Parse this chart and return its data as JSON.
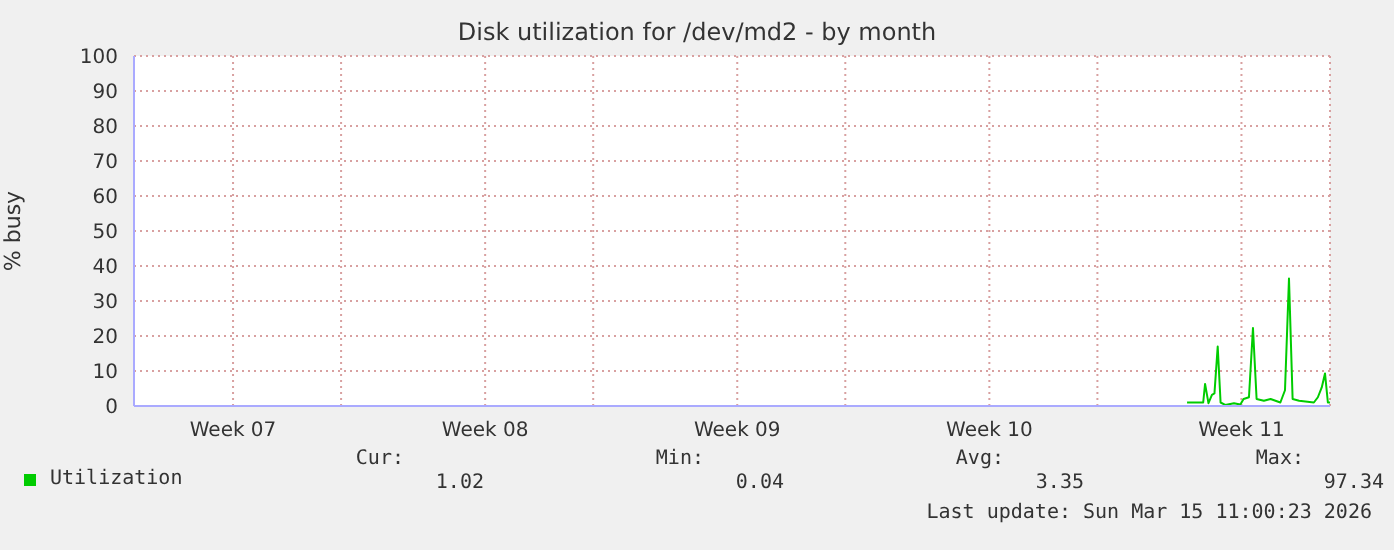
{
  "chart_data": {
    "type": "line",
    "title": "Disk utilization for /dev/md2 - by month",
    "ylabel": "% busy",
    "xlim": [
      "2026-02-10T06:00",
      "2026-03-15T11:00"
    ],
    "xticks": [
      {
        "value": "2026-02-13",
        "label": "Week 07"
      },
      {
        "value": "2026-02-16",
        "label": null
      },
      {
        "value": "2026-02-20",
        "label": "Week 08"
      },
      {
        "value": "2026-02-23",
        "label": null
      },
      {
        "value": "2026-02-27",
        "label": "Week 09"
      },
      {
        "value": "2026-03-02",
        "label": null
      },
      {
        "value": "2026-03-06",
        "label": "Week 10"
      },
      {
        "value": "2026-03-09",
        "label": null
      },
      {
        "value": "2026-03-13",
        "label": "Week 11"
      }
    ],
    "ylim": [
      0,
      100
    ],
    "yticks": [
      0,
      10,
      20,
      30,
      40,
      50,
      60,
      70,
      80,
      90,
      100
    ],
    "grid": true,
    "legend": "bottom left",
    "marker": "none",
    "line_style": "solid",
    "series": [
      {
        "name": "Utilization",
        "color": "#00cc00",
        "x": [
          "2026-03-11T11:45",
          "2026-03-11T22:30",
          "2026-03-11T23:45",
          "2026-03-12T02:00",
          "2026-03-12T04:20",
          "2026-03-12T06:00",
          "2026-03-12T08:10",
          "2026-03-12T10:05",
          "2026-03-12T13:10",
          "2026-03-12T19:00",
          "2026-03-12T23:15",
          "2026-03-13T01:25",
          "2026-03-13T05:00",
          "2026-03-13T07:40",
          "2026-03-13T10:05",
          "2026-03-13T14:55",
          "2026-03-13T19:25",
          "2026-03-14T01:55",
          "2026-03-14T05:00",
          "2026-03-14T07:40",
          "2026-03-14T10:05",
          "2026-03-14T14:25",
          "2026-03-15T00:15",
          "2026-03-15T02:55",
          "2026-03-15T05:30",
          "2026-03-15T07:40",
          "2026-03-15T09:35",
          "2026-03-15T11:00"
        ],
        "values": [
          1,
          1,
          6.3,
          0.8,
          3.2,
          3.6,
          17,
          1,
          0.3,
          0.8,
          0.4,
          2,
          2.5,
          22.3,
          2,
          1.5,
          2,
          1,
          4.5,
          36.4,
          2,
          1.5,
          1,
          2.5,
          5.3,
          9.3,
          1,
          1
        ]
      }
    ],
    "annotations": [
      "Cur:",
      "1.02",
      "Min:",
      "0.04",
      "Avg:",
      "3.35",
      "Max:",
      "97.34",
      "Last update: Sun Mar 15 11:00:23 2026"
    ]
  }
}
